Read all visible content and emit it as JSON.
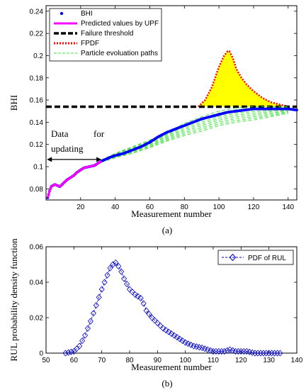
{
  "chart_data": [
    {
      "type": "line",
      "caption": "(a)",
      "xlabel": "Measurement number",
      "ylabel": "BHI",
      "xlim": [
        0,
        145
      ],
      "ylim": [
        0.07,
        0.245
      ],
      "xticks": [
        20,
        40,
        60,
        80,
        100,
        120,
        140
      ],
      "yticks": [
        0.08,
        0.1,
        0.12,
        0.14,
        0.16,
        0.18,
        0.2,
        0.22,
        0.24
      ],
      "grid": false,
      "legend_position": "top-left",
      "annotation": {
        "line1": "Data",
        "line1b": "for",
        "line2": "updating"
      },
      "series": [
        {
          "name": "BHI",
          "style": "dots",
          "color": "#0000ff",
          "x": [
            1,
            2,
            3,
            5,
            8,
            10,
            12,
            14,
            16,
            18,
            20,
            22,
            25,
            28,
            30,
            32,
            35,
            38,
            40,
            45,
            50,
            55,
            60,
            65,
            70,
            75,
            80,
            85,
            90,
            95,
            100,
            105,
            110,
            115,
            120,
            125,
            130,
            135,
            140,
            145
          ],
          "y": [
            0.072,
            0.078,
            0.082,
            0.084,
            0.082,
            0.085,
            0.088,
            0.09,
            0.092,
            0.095,
            0.097,
            0.099,
            0.1,
            0.101,
            0.103,
            0.105,
            0.107,
            0.109,
            0.11,
            0.112,
            0.115,
            0.118,
            0.122,
            0.127,
            0.131,
            0.134,
            0.137,
            0.14,
            0.143,
            0.145,
            0.147,
            0.149,
            0.15,
            0.151,
            0.152,
            0.152,
            0.152,
            0.152,
            0.152,
            0.151
          ]
        },
        {
          "name": "Predicted values by UPF",
          "style": "solid",
          "color": "#ff00ff",
          "x": [
            1,
            2,
            3,
            5,
            8,
            10,
            12,
            14,
            16,
            18,
            20,
            22,
            25,
            28,
            30,
            32
          ],
          "y": [
            0.072,
            0.078,
            0.082,
            0.084,
            0.082,
            0.085,
            0.088,
            0.09,
            0.092,
            0.095,
            0.097,
            0.099,
            0.1,
            0.101,
            0.103,
            0.105
          ]
        },
        {
          "name": "Failure threshold",
          "style": "dashed",
          "color": "#000000",
          "x": [
            0,
            145
          ],
          "y": [
            0.154,
            0.154
          ]
        },
        {
          "name": "FPDF",
          "style": "dotted-filled",
          "color": "#ff0000",
          "fill": "#ffff00",
          "baseline": 0.154,
          "x": [
            88,
            92,
            96,
            100,
            103,
            105,
            106,
            108,
            110,
            113,
            116,
            120,
            125,
            130,
            135,
            140
          ],
          "y": [
            0.154,
            0.16,
            0.172,
            0.19,
            0.2,
            0.204,
            0.204,
            0.198,
            0.188,
            0.18,
            0.174,
            0.168,
            0.162,
            0.158,
            0.156,
            0.154
          ]
        },
        {
          "name": "Particle evoluation paths",
          "style": "thin-dashed",
          "color": "#33dd33",
          "x": [
            32,
            40,
            50,
            60,
            70,
            80,
            90,
            100,
            110,
            120,
            130,
            140
          ],
          "y_upper": [
            0.106,
            0.112,
            0.118,
            0.124,
            0.131,
            0.139,
            0.145,
            0.15,
            0.153,
            0.154,
            0.154,
            0.154
          ],
          "y_lower": [
            0.104,
            0.108,
            0.112,
            0.117,
            0.123,
            0.128,
            0.132,
            0.137,
            0.14,
            0.142,
            0.145,
            0.148
          ]
        }
      ]
    },
    {
      "type": "line",
      "caption": "(b)",
      "xlabel": "Measurement number",
      "ylabel": "RUL probability density function",
      "xlim": [
        50,
        140
      ],
      "ylim": [
        0,
        0.06
      ],
      "xticks": [
        50,
        60,
        70,
        80,
        90,
        100,
        110,
        120,
        130,
        140
      ],
      "yticks": [
        0,
        0.02,
        0.04,
        0.06
      ],
      "grid": false,
      "legend_position": "top-right",
      "series": [
        {
          "name": "PDF of RUL",
          "style": "diamond-markers",
          "color": "#0000cc",
          "x": [
            57,
            60,
            62,
            64,
            66,
            68,
            70,
            72,
            73,
            74,
            75,
            76,
            77,
            78,
            79,
            80,
            82,
            84,
            85,
            86,
            88,
            90,
            92,
            95,
            98,
            100,
            103,
            106,
            108,
            110,
            112,
            114,
            116,
            118,
            120,
            122,
            125,
            128,
            131,
            134
          ],
          "y": [
            0.0,
            0.001,
            0.004,
            0.01,
            0.018,
            0.027,
            0.036,
            0.044,
            0.048,
            0.05,
            0.051,
            0.049,
            0.046,
            0.042,
            0.039,
            0.036,
            0.033,
            0.031,
            0.028,
            0.024,
            0.02,
            0.017,
            0.014,
            0.011,
            0.008,
            0.006,
            0.004,
            0.003,
            0.002,
            0.001,
            0.001,
            0.001,
            0.002,
            0.001,
            0.001,
            0.001,
            0.0,
            0.0,
            0.0,
            0.0
          ]
        }
      ]
    }
  ]
}
